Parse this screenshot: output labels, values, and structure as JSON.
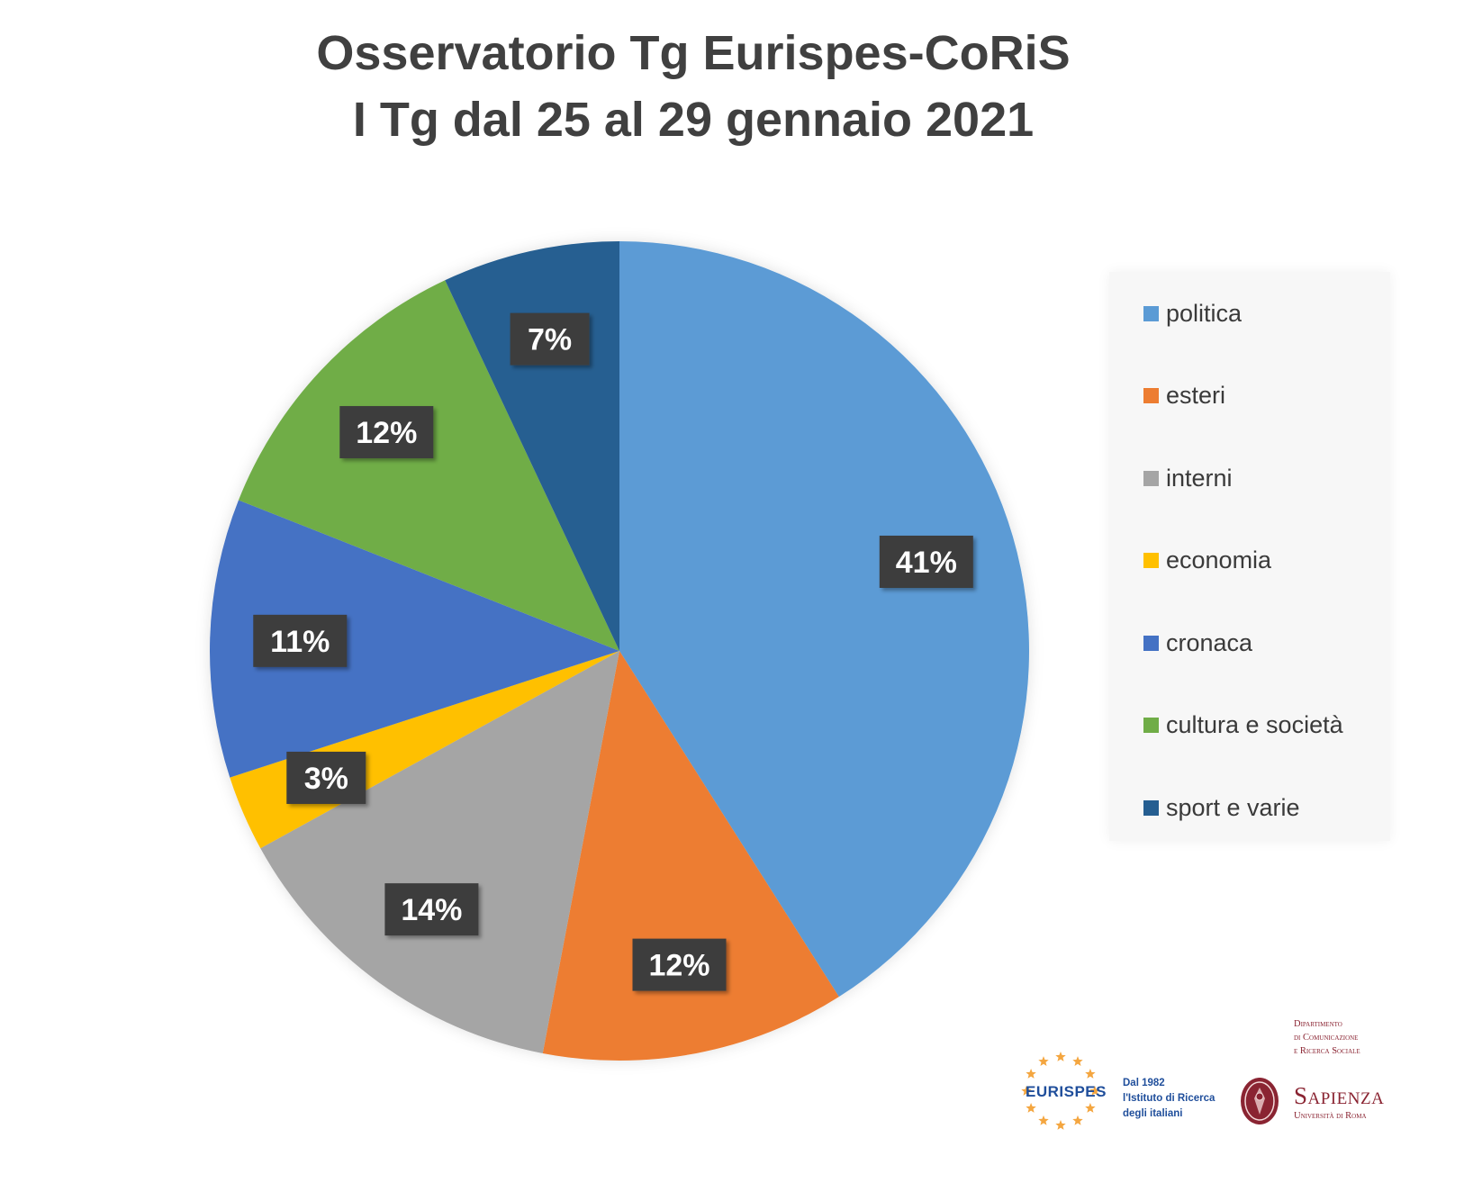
{
  "header": {
    "title_line1": "Osservatorio Tg Eurispes-CoRiS",
    "title_line2": "I Tg dal 25 al 29 gennaio 2021"
  },
  "chart_data": {
    "type": "pie",
    "title": "Osservatorio Tg Eurispes-CoRiS I Tg dal 25 al 29 gennaio 2021",
    "legend_position": "right",
    "start_angle": "12 o'clock",
    "direction": "clockwise",
    "slices": [
      {
        "name": "politica",
        "value": 41,
        "label": "41%",
        "color": "#5b9bd5"
      },
      {
        "name": "esteri",
        "value": 12,
        "label": "12%",
        "color": "#ed7d31"
      },
      {
        "name": "interni",
        "value": 14,
        "label": "14%",
        "color": "#a5a5a5"
      },
      {
        "name": "economia",
        "value": 3,
        "label": "3%",
        "color": "#ffc000"
      },
      {
        "name": "cronaca",
        "value": 11,
        "label": "11%",
        "color": "#4472c4"
      },
      {
        "name": "cultura e società",
        "value": 12,
        "label": "12%",
        "color": "#70ad47"
      },
      {
        "name": "sport e varie",
        "value": 7,
        "label": "7%",
        "color": "#255e91"
      }
    ]
  },
  "logos": {
    "eurispes": {
      "name": "EURISPES",
      "tagline": [
        "Dal 1982",
        "l'Istituto di Ricerca",
        "degli italiani"
      ],
      "color": "#1f4e9b",
      "accent": "#f4a640"
    },
    "sapienza": {
      "department": [
        "Dipartimento",
        "di Comunicazione",
        "e Ricerca Sociale"
      ],
      "name": "Sapienza",
      "subtitle": "Università di Roma",
      "color": "#8a2432"
    }
  }
}
